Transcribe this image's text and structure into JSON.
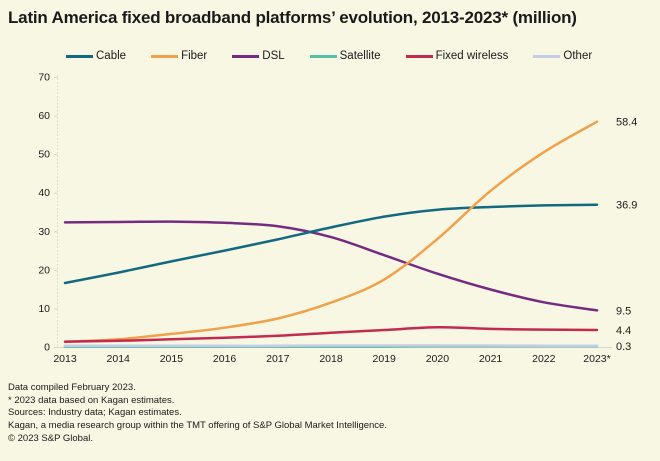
{
  "title": "Latin America fixed broadband platforms’ evolution, 2013-2023* (million)",
  "chart_data": {
    "type": "line",
    "title": "Latin America fixed broadband platforms’ evolution, 2013-2023* (million)",
    "categories": [
      "2013",
      "2014",
      "2015",
      "2016",
      "2017",
      "2018",
      "2019",
      "2020",
      "2021",
      "2022",
      "2023*"
    ],
    "series": [
      {
        "name": "Cable",
        "color": "#136a80",
        "values": [
          16.6,
          19.3,
          22.2,
          25.0,
          27.9,
          31.0,
          33.8,
          35.6,
          36.3,
          36.7,
          36.9
        ],
        "end_label": "36.9"
      },
      {
        "name": "Fiber",
        "color": "#efa14b",
        "values": [
          1.3,
          2.0,
          3.4,
          5.0,
          7.4,
          11.5,
          17.5,
          28.0,
          40.5,
          50.5,
          58.4
        ],
        "end_label": "58.4"
      },
      {
        "name": "DSL",
        "color": "#742b80",
        "values": [
          32.3,
          32.4,
          32.5,
          32.2,
          31.3,
          28.5,
          23.8,
          19.0,
          14.9,
          11.6,
          9.5
        ],
        "end_label": "9.5"
      },
      {
        "name": "Satellite",
        "color": "#57c0a8",
        "values": [
          0.1,
          0.1,
          0.1,
          0.1,
          0.1,
          0.1,
          0.1,
          0.2,
          0.2,
          0.2,
          0.2
        ],
        "end_label": ""
      },
      {
        "name": "Fixed wireless",
        "color": "#c22a50",
        "values": [
          1.4,
          1.6,
          2.0,
          2.4,
          2.9,
          3.7,
          4.4,
          5.1,
          4.7,
          4.5,
          4.4
        ],
        "end_label": "4.4"
      },
      {
        "name": "Other",
        "color": "#c4cde4",
        "values": [
          0.3,
          0.3,
          0.3,
          0.3,
          0.3,
          0.4,
          0.4,
          0.4,
          0.4,
          0.3,
          0.3
        ],
        "end_label": "0.3"
      }
    ],
    "xlabel": "",
    "ylabel": "",
    "ylim": [
      0,
      70
    ],
    "yticks": [
      0,
      10,
      20,
      30,
      40,
      50,
      60,
      70
    ],
    "grid": false,
    "legend_position": "top"
  },
  "footer": {
    "lines": [
      "Data compiled February 2023.",
      "* 2023 data based on Kagan estimates.",
      "Sources: Industry data; Kagan estimates.",
      "Kagan, a media research group within the TMT offering of S&P Global Market Intelligence.",
      "© 2023 S&P Global."
    ]
  },
  "colors": {
    "background": "#f8f7e4",
    "text": "#1a1a1a",
    "axis": "#d9d7c6"
  }
}
